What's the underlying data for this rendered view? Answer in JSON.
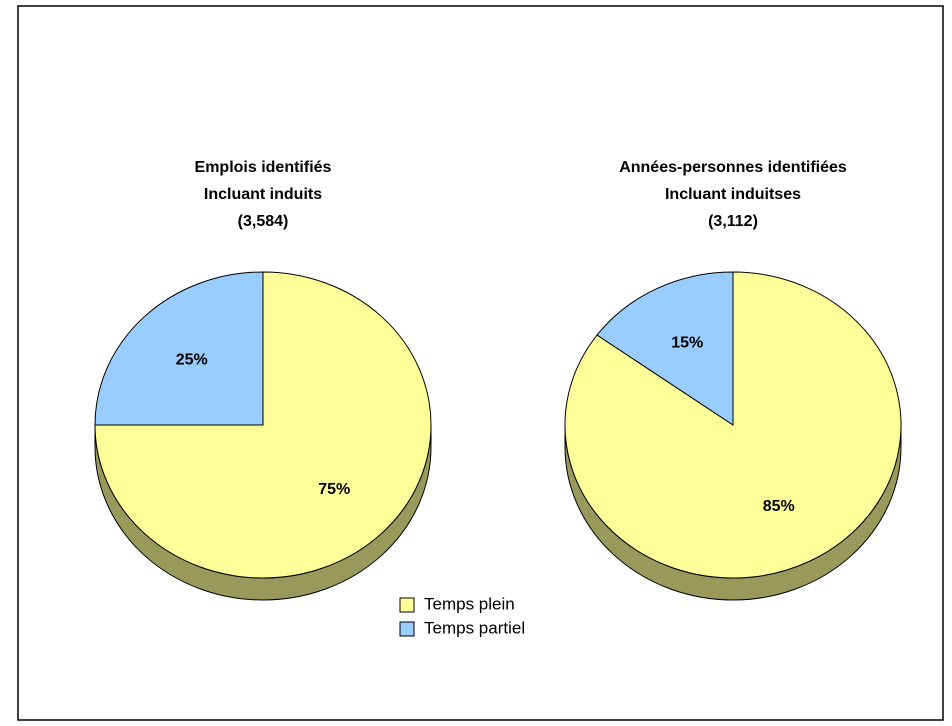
{
  "chart_data": [
    {
      "type": "pie",
      "title": [
        "Emplois identifiés",
        "Incluant induits",
        "(3,584)"
      ],
      "categories": [
        "Temps plein",
        "Temps partiel"
      ],
      "values": [
        75,
        25
      ],
      "value_labels": [
        "75%",
        "25%"
      ],
      "colors": [
        "#ffff99",
        "#99ccff"
      ]
    },
    {
      "type": "pie",
      "title": [
        "Années-personnes identifiées",
        "Incluant induitses",
        "(3,112)"
      ],
      "categories": [
        "Temps plein",
        "Temps partiel"
      ],
      "values": [
        85,
        15
      ],
      "value_labels": [
        "85%",
        "15%"
      ],
      "colors": [
        "#ffff99",
        "#99ccff"
      ]
    }
  ]
}
